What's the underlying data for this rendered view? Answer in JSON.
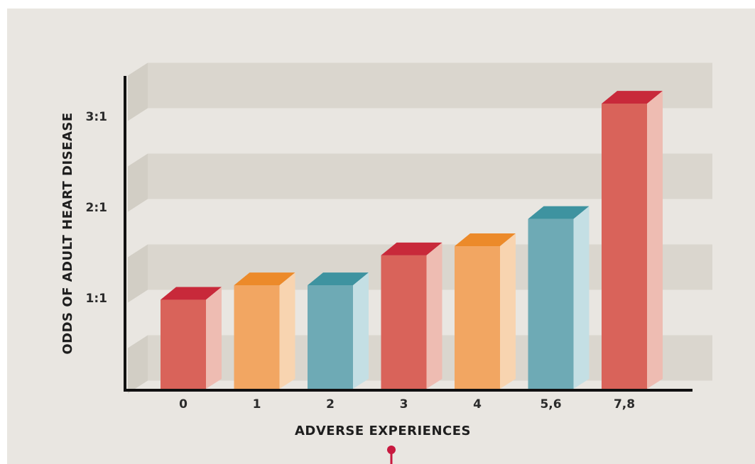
{
  "chart_data": {
    "type": "bar",
    "title": "",
    "xlabel": "ADVERSE EXPERIENCES",
    "ylabel": "ODDS OF ADULT HEART DISEASE",
    "categories": [
      "0",
      "1",
      "2",
      "3",
      "4",
      "5,6",
      "7,8"
    ],
    "values": [
      0.98,
      1.14,
      1.14,
      1.47,
      1.57,
      1.87,
      3.14
    ],
    "value_unit": "odds ratio",
    "yticks": [
      {
        "value": 1,
        "label": "1:1"
      },
      {
        "value": 2,
        "label": "2:1"
      },
      {
        "value": 3,
        "label": "3:1"
      }
    ],
    "ylim": [
      0,
      3.5
    ],
    "grid": true,
    "legend": "none",
    "colors": {
      "red": {
        "front": "#d9635a",
        "top": "#c8293a",
        "side": "#eebcb2"
      },
      "orange": {
        "front": "#f2a662",
        "top": "#ec8a2a",
        "side": "#f8d4b0"
      },
      "teal": {
        "front": "#6eaab5",
        "top": "#3e93a0",
        "side": "#c4dfe4"
      },
      "background": "#e9e6e1",
      "band": "#dad6ce",
      "axis": "#111111",
      "pin": "#c8193f"
    },
    "bar_colors": [
      "red",
      "orange",
      "teal",
      "red",
      "orange",
      "teal",
      "red"
    ]
  }
}
